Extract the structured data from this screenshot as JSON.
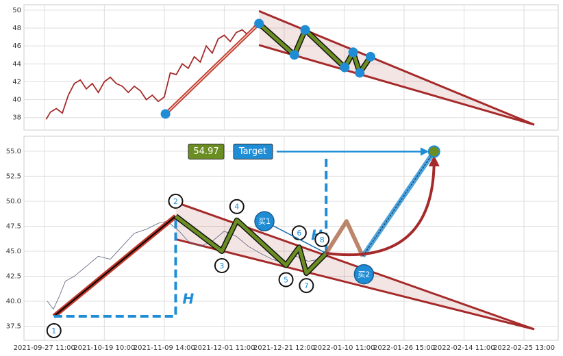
{
  "chart_data": [
    {
      "type": "line",
      "ylim": [
        36.6,
        50.6
      ],
      "yticks": [
        38,
        40,
        42,
        44,
        46,
        48,
        50
      ],
      "price": {
        "color": "#a52a2a",
        "x": [
          3,
          10,
          20,
          30,
          40,
          50,
          60,
          70,
          80,
          90,
          100,
          110,
          120,
          130,
          140,
          150,
          160,
          170,
          180,
          190,
          200,
          210,
          220,
          230,
          240,
          250,
          260,
          270,
          280,
          290,
          300,
          310,
          320,
          330,
          340,
          350,
          357
        ],
        "values": [
          37.8,
          38.6,
          39.0,
          38.5,
          40.5,
          41.8,
          42.2,
          41.2,
          41.8,
          40.8,
          42.0,
          42.5,
          41.8,
          41.5,
          40.8,
          41.5,
          41.0,
          40.0,
          40.5,
          39.8,
          40.3,
          43.0,
          42.8,
          44.0,
          43.5,
          44.8,
          44.2,
          46.0,
          45.2,
          46.8,
          47.2,
          46.5,
          47.5,
          47.8,
          47.2,
          48.2,
          48.6
        ]
      },
      "rise": {
        "color": "#c0392b",
        "x": [
          202,
          358
        ],
        "values": [
          38.4,
          48.5
        ]
      },
      "legs": {
        "color": "#6b8e23",
        "x": [
          358,
          417,
          435,
          501,
          515,
          526,
          544
        ],
        "values": [
          48.5,
          45.0,
          47.8,
          43.6,
          45.3,
          43.0,
          44.8
        ]
      },
      "wedge": {
        "color": "#a52a2a",
        "upper": {
          "x": [
            358,
            817
          ],
          "values": [
            49.9,
            37.2
          ]
        },
        "lower": {
          "x": [
            358,
            817
          ],
          "values": [
            46.1,
            37.2
          ]
        }
      },
      "marker_color": "#1f8dd6"
    },
    {
      "type": "line",
      "xlim": [
        -34,
        857
      ],
      "xticks": [
        {
          "value": 0,
          "label": "2021-09-27 11:00"
        },
        {
          "value": 100,
          "label": "2021-10-19 10:00"
        },
        {
          "value": 200,
          "label": "2021-11-09 14:00"
        },
        {
          "value": 300,
          "label": "2021-12-01 11:00"
        },
        {
          "value": 400,
          "label": "2021-12-21 12:00"
        },
        {
          "value": 500,
          "label": "2022-01-10 11:00"
        },
        {
          "value": 600,
          "label": "2022-01-26 15:00"
        },
        {
          "value": 700,
          "label": "2022-02-14 11:00"
        },
        {
          "value": 800,
          "label": "2022-02-25 13:00"
        }
      ],
      "ylim": [
        36.1,
        56.5
      ],
      "yticks": [
        37.5,
        {
          "value": 40,
          "label": "40.0"
        },
        42.5,
        {
          "value": 45,
          "label": "45.0"
        },
        47.5,
        {
          "value": 50,
          "label": "50.0"
        },
        52.5,
        {
          "value": 55,
          "label": "55.0"
        }
      ],
      "price": {
        "color": "#5a6079",
        "x": [
          5,
          15,
          25,
          35,
          50,
          70,
          90,
          110,
          130,
          150,
          170,
          190,
          205,
          215,
          225,
          240,
          260,
          280,
          300,
          320,
          340,
          360,
          380,
          400,
          420,
          440,
          460,
          470
        ],
        "values": [
          40.0,
          39.2,
          40.5,
          42.0,
          42.5,
          43.5,
          44.5,
          44.2,
          45.5,
          46.8,
          47.2,
          47.8,
          48.0,
          47.5,
          47.0,
          46.0,
          45.5,
          46.0,
          47.0,
          46.5,
          45.5,
          44.8,
          44.2,
          43.8,
          44.5,
          44.0,
          44.2,
          44.8
        ]
      },
      "rise": {
        "color": "#c0392b",
        "x": [
          16,
          219
        ],
        "values": [
          38.5,
          48.5
        ]
      },
      "legs": {
        "color": "#6b8e23",
        "x": [
          219,
          296,
          321,
          403,
          425,
          437,
          470
        ],
        "values": [
          48.5,
          45.0,
          48.1,
          43.6,
          45.4,
          42.8,
          44.8
        ],
        "labels": [
          "2",
          "3",
          "4",
          "5",
          "6",
          "7",
          "8"
        ]
      },
      "start_label": "1",
      "wedge": {
        "color": "#a52a2a",
        "upper": {
          "x": [
            219,
            817
          ],
          "values": [
            49.9,
            37.2
          ]
        },
        "lower": {
          "x": [
            219,
            817
          ],
          "values": [
            46.2,
            37.2
          ]
        }
      },
      "height_label": "H",
      "projection": {
        "color": "#a0522d",
        "x": [
          470,
          504,
          531
        ],
        "values": [
          44.8,
          48.0,
          44.5
        ]
      },
      "target": {
        "x": 650,
        "value": 54.97,
        "label": "Target",
        "color": "#1f8dd6",
        "value_color": "#6b8e23"
      },
      "buys": [
        {
          "label": "买1",
          "x": 367,
          "value": 48.0
        },
        {
          "label": "买2",
          "x": 533,
          "value": 42.7
        }
      ]
    }
  ]
}
